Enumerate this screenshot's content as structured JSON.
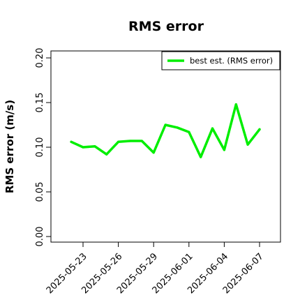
{
  "chart_data": {
    "type": "line",
    "title": "RMS error",
    "xlabel": "",
    "ylabel": "RMS error (m/s)",
    "ylim": [
      0,
      0.2
    ],
    "yticks": [
      "0.00",
      "0.05",
      "0.10",
      "0.15",
      "0.20"
    ],
    "yticks_values": [
      0,
      0.05,
      0.1,
      0.15,
      0.2
    ],
    "xlim": [
      "2025-05-20",
      "2025-06-09"
    ],
    "xticks": [
      "2025-05-23",
      "2025-05-26",
      "2025-05-29",
      "2025-06-01",
      "2025-06-04",
      "2025-06-07"
    ],
    "xtick_highlight": "2025-05-29",
    "xtick_highlight_color": "#228b22",
    "grid": false,
    "legend_position": "top-right",
    "series": [
      {
        "name": "best est. (RMS error)",
        "color": "#00ee00",
        "x": [
          "2025-05-22",
          "2025-05-23",
          "2025-05-24",
          "2025-05-25",
          "2025-05-26",
          "2025-05-27",
          "2025-05-28",
          "2025-05-29",
          "2025-05-30",
          "2025-05-31",
          "2025-06-01",
          "2025-06-02",
          "2025-06-03",
          "2025-06-04",
          "2025-06-05",
          "2025-06-06",
          "2025-06-07"
        ],
        "values": [
          0.106,
          0.1,
          0.101,
          0.092,
          0.106,
          0.107,
          0.107,
          0.094,
          0.125,
          0.122,
          0.117,
          0.089,
          0.121,
          0.097,
          0.148,
          0.103,
          0.12
        ]
      }
    ]
  }
}
